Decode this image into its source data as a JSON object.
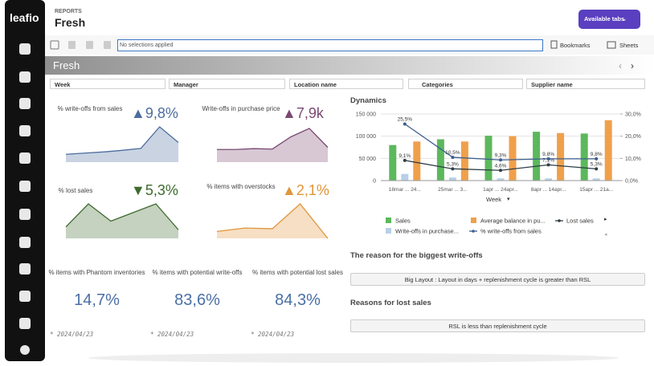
{
  "sidebar": {
    "logo": "leafio"
  },
  "header": {
    "section": "REPORTS",
    "title": "Fresh",
    "tabs_button": "Available tabs"
  },
  "toolbar": {
    "selections": "No selections applied",
    "bookmarks": "Bookmarks",
    "sheets": "Sheets"
  },
  "sheet_title": "Fresh",
  "filters": [
    "Week",
    "Manager",
    "Location name",
    "Categories",
    "Supplier name"
  ],
  "kpis": [
    {
      "label": "% write-offs from sales",
      "value": "▲9,8%",
      "color": "#4d6c9e",
      "trend": [
        2,
        2.3,
        2.6,
        3,
        3.5,
        9,
        5
      ]
    },
    {
      "label": "Write-offs in purchase price",
      "value": "▲7,9k",
      "color": "#7a4a72",
      "trend": [
        3,
        3,
        3.2,
        3.1,
        6,
        8,
        3.5
      ]
    },
    {
      "label": "% lost sales",
      "value": "▼5,3%",
      "color": "#3e6b2e",
      "trend": [
        2,
        6,
        3,
        4.5,
        6,
        1.5
      ]
    },
    {
      "label": "% items with overstocks",
      "value": "▲2,1%",
      "color": "#e0963a",
      "trend": [
        2,
        3,
        2.8,
        10,
        0
      ]
    }
  ],
  "stats": [
    {
      "label": "% items with Phantom inventories",
      "value": "14,7%",
      "note": "* 2024/04/23"
    },
    {
      "label": "% items with potential write-offs",
      "value": "83,6%",
      "note": "* 2024/04/23"
    },
    {
      "label": "% items with potential lost sales",
      "value": "84,3%",
      "note": "* 2024/04/23"
    }
  ],
  "dynamics": {
    "type": "bar",
    "title": "Dynamics",
    "x_label": "Week",
    "categories": [
      "18mar ... 24...",
      "25mar ... 3...",
      "1apr ... 24apr...",
      "8apr ... 14apr...",
      "15apr ... 21a..."
    ],
    "ylim": [
      0,
      150000
    ],
    "yticks": [
      0,
      {
        "value": 50000,
        "label": "50 000"
      },
      {
        "value": 100000,
        "label": "100 000"
      },
      {
        "value": 150000,
        "label": "150 000"
      }
    ],
    "y2lim": [
      0,
      30
    ],
    "y2ticks": [
      {
        "value": 0,
        "label": "0,0%"
      },
      {
        "value": 10,
        "label": "10,0%"
      },
      {
        "value": 20,
        "label": "20,0%"
      },
      {
        "value": 30,
        "label": "30,0%"
      }
    ],
    "series": [
      {
        "name": "Sales",
        "kind": "bar",
        "color": "#5cb85c",
        "values": [
          80000,
          93000,
          101000,
          110000,
          106000
        ]
      },
      {
        "name": "Write-offs in purchase...",
        "kind": "bar",
        "color": "#b8d0e8",
        "values": [
          15000,
          7000,
          5000,
          5000,
          5000
        ]
      },
      {
        "name": "Average balance in pu...",
        "kind": "bar",
        "color": "#f0a04b",
        "values": [
          88000,
          88000,
          100000,
          107000,
          136000
        ]
      },
      {
        "name": "Lost sales",
        "kind": "line",
        "axis": "y2",
        "color": "#2f3e46",
        "values": [
          9.1,
          5.3,
          4.6,
          7.1,
          5.3
        ],
        "value_labels": [
          "9,1%",
          "5,3%",
          "4,6%",
          "7,1%",
          "5,3%"
        ]
      },
      {
        "name": "% write-offs from sales",
        "kind": "line",
        "axis": "y2",
        "color": "#3d5f8f",
        "values": [
          25.5,
          10.5,
          9.3,
          9.8,
          9.8
        ],
        "value_labels": [
          "25,5%",
          "10,5%",
          "9,3%",
          "9,8%",
          "9,8%"
        ]
      }
    ]
  },
  "write_offs_reason": {
    "title": "The reason for the biggest write-offs",
    "items": [
      "Big Layout : Layout in days + replenishment cycle is greater than RSL"
    ]
  },
  "lost_sales_reason": {
    "title": "Reasons for lost sales",
    "items": [
      "RSL is less than replenishment cycle"
    ]
  }
}
